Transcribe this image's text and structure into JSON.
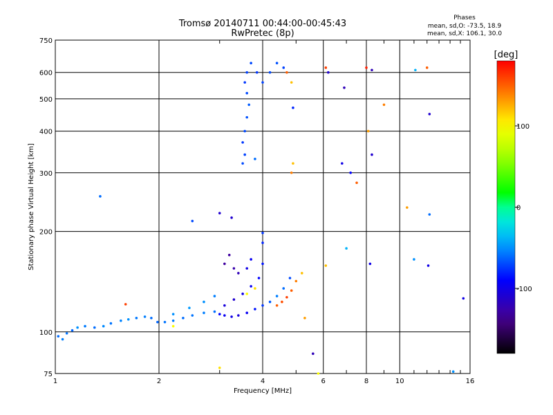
{
  "chart_data": {
    "type": "scatter",
    "title": "Tromsø 20140711 00:44:00-00:45:43",
    "subtitle": "RwPretec (8p)",
    "stats": {
      "title": "Phases",
      "o_line": "mean, sd,O: -73.5, 18.9",
      "x_line": "mean, sd,X: 106.1, 30.0"
    },
    "xlabel": "Frequency [MHz]",
    "ylabel": "Stationary phase Virtual Height [km]",
    "xscale": "log",
    "yscale": "log",
    "xlim": [
      1,
      16
    ],
    "ylim": [
      75,
      750
    ],
    "xticks": [
      1,
      2,
      4,
      6,
      8,
      10,
      16
    ],
    "yticks": [
      75,
      100,
      200,
      300,
      400,
      500,
      600,
      750
    ],
    "grid": true,
    "colorbar": {
      "label": "[deg]",
      "range": [
        -180,
        180
      ],
      "ticks": [
        100,
        0,
        -100
      ]
    },
    "series": [
      {
        "points": [
          [
            1.02,
            97,
            -60
          ],
          [
            1.05,
            95,
            -55
          ],
          [
            1.08,
            99,
            -58
          ],
          [
            1.12,
            101,
            -62
          ],
          [
            1.16,
            103,
            -50
          ],
          [
            1.22,
            104,
            -56
          ],
          [
            1.3,
            103,
            -60
          ],
          [
            1.38,
            104,
            -52
          ],
          [
            1.45,
            106,
            -58
          ],
          [
            1.55,
            108,
            -54
          ],
          [
            1.63,
            109,
            -50
          ],
          [
            1.72,
            110,
            -57
          ],
          [
            1.82,
            111,
            -55
          ],
          [
            1.9,
            110,
            -60
          ],
          [
            1.98,
            107,
            -62
          ],
          [
            2.08,
            107,
            -58
          ],
          [
            2.2,
            108,
            -56
          ],
          [
            2.35,
            110,
            -60
          ],
          [
            2.5,
            112,
            -58
          ],
          [
            2.7,
            114,
            -55
          ],
          [
            2.9,
            115,
            -60
          ],
          [
            3.0,
            113,
            -90
          ],
          [
            3.1,
            112,
            -95
          ],
          [
            3.25,
            111,
            -100
          ],
          [
            3.4,
            112,
            -105
          ],
          [
            3.6,
            114,
            -95
          ],
          [
            3.8,
            117,
            -85
          ],
          [
            4.0,
            120,
            -75
          ],
          [
            4.2,
            123,
            -65
          ],
          [
            4.4,
            128,
            -55
          ],
          [
            4.6,
            135,
            -60
          ],
          [
            4.8,
            145,
            -70
          ],
          [
            2.2,
            113,
            -50
          ],
          [
            2.45,
            118,
            -48
          ],
          [
            2.7,
            123,
            -50
          ],
          [
            2.9,
            128,
            -55
          ],
          [
            3.1,
            120,
            -105
          ],
          [
            3.3,
            125,
            -110
          ],
          [
            3.5,
            130,
            -100
          ],
          [
            3.7,
            137,
            -95
          ],
          [
            3.9,
            145,
            -90
          ],
          [
            4.0,
            160,
            -85
          ],
          [
            4.0,
            185,
            -80
          ],
          [
            4.0,
            198,
            -75
          ],
          [
            3.1,
            160,
            -130
          ],
          [
            3.2,
            170,
            -130
          ],
          [
            3.3,
            155,
            -125
          ],
          [
            3.4,
            150,
            -120
          ],
          [
            3.6,
            155,
            -100
          ],
          [
            3.7,
            165,
            -95
          ],
          [
            4.4,
            120,
            150
          ],
          [
            4.55,
            123,
            155
          ],
          [
            4.7,
            127,
            160
          ],
          [
            4.85,
            133,
            150
          ],
          [
            5.0,
            142,
            140
          ],
          [
            5.2,
            150,
            120
          ],
          [
            3.6,
            130,
            100
          ],
          [
            3.8,
            135,
            110
          ],
          [
            3.5,
            320,
            -70
          ],
          [
            3.55,
            340,
            -72
          ],
          [
            3.5,
            370,
            -75
          ],
          [
            3.55,
            400,
            -70
          ],
          [
            3.6,
            440,
            -68
          ],
          [
            3.65,
            480,
            -65
          ],
          [
            3.6,
            520,
            -70
          ],
          [
            3.55,
            560,
            -75
          ],
          [
            3.6,
            600,
            -72
          ],
          [
            3.7,
            640,
            -70
          ],
          [
            3.85,
            600,
            -75
          ],
          [
            4.0,
            560,
            -72
          ],
          [
            4.2,
            600,
            -70
          ],
          [
            4.4,
            640,
            -68
          ],
          [
            4.6,
            620,
            -72
          ],
          [
            3.8,
            330,
            -60
          ],
          [
            4.7,
            600,
            150
          ],
          [
            4.85,
            560,
            120
          ],
          [
            4.9,
            470,
            -80
          ],
          [
            4.9,
            320,
            120
          ],
          [
            4.85,
            300,
            140
          ],
          [
            6.1,
            620,
            160
          ],
          [
            6.2,
            600,
            -110
          ],
          [
            6.9,
            540,
            -120
          ],
          [
            8.0,
            620,
            170
          ],
          [
            8.3,
            610,
            -120
          ],
          [
            8.1,
            400,
            130
          ],
          [
            8.3,
            340,
            -110
          ],
          [
            11.1,
            610,
            -40
          ],
          [
            12.0,
            620,
            150
          ],
          [
            12.2,
            450,
            -110
          ],
          [
            6.8,
            320,
            -100
          ],
          [
            7.2,
            300,
            -90
          ],
          [
            7.5,
            280,
            150
          ],
          [
            9.0,
            480,
            140
          ],
          [
            10.5,
            236,
            130
          ],
          [
            12.2,
            225,
            -60
          ],
          [
            1.35,
            255,
            -60
          ],
          [
            2.5,
            215,
            -70
          ],
          [
            3.0,
            227,
            -110
          ],
          [
            3.25,
            220,
            -110
          ],
          [
            11.0,
            165,
            -50
          ],
          [
            12.1,
            158,
            -100
          ],
          [
            8.2,
            160,
            -100
          ],
          [
            7.0,
            178,
            -40
          ],
          [
            6.1,
            158,
            120
          ],
          [
            5.3,
            110,
            130
          ],
          [
            5.6,
            86,
            -120
          ],
          [
            3.0,
            78,
            110
          ],
          [
            2.2,
            104,
            100
          ],
          [
            1.6,
            121,
            160
          ],
          [
            15.3,
            126,
            -100
          ],
          [
            14.3,
            76,
            -50
          ],
          [
            5.8,
            75,
            100
          ]
        ]
      }
    ]
  }
}
